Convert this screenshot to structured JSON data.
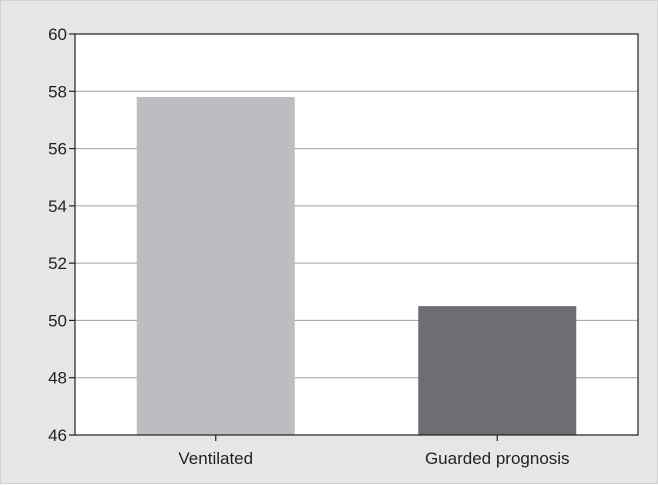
{
  "chart_data": {
    "type": "bar",
    "title": "",
    "xlabel": "",
    "ylabel": "",
    "categories": [
      "Ventilated",
      "Guarded prognosis"
    ],
    "values": [
      57.8,
      50.5
    ],
    "bar_colors": [
      "#bcbdc0",
      "#6d6e71"
    ],
    "ylim": [
      46,
      60
    ],
    "y_ticks": [
      "46",
      "48",
      "50",
      "52",
      "54",
      "56",
      "58",
      "60"
    ],
    "grid": "horizontal",
    "legend": "none"
  },
  "colors": {
    "figure_background": "#e6e6e7",
    "plot_background": "#ffffff",
    "gridline": "#9d9fa2",
    "axis": "#231f20"
  }
}
